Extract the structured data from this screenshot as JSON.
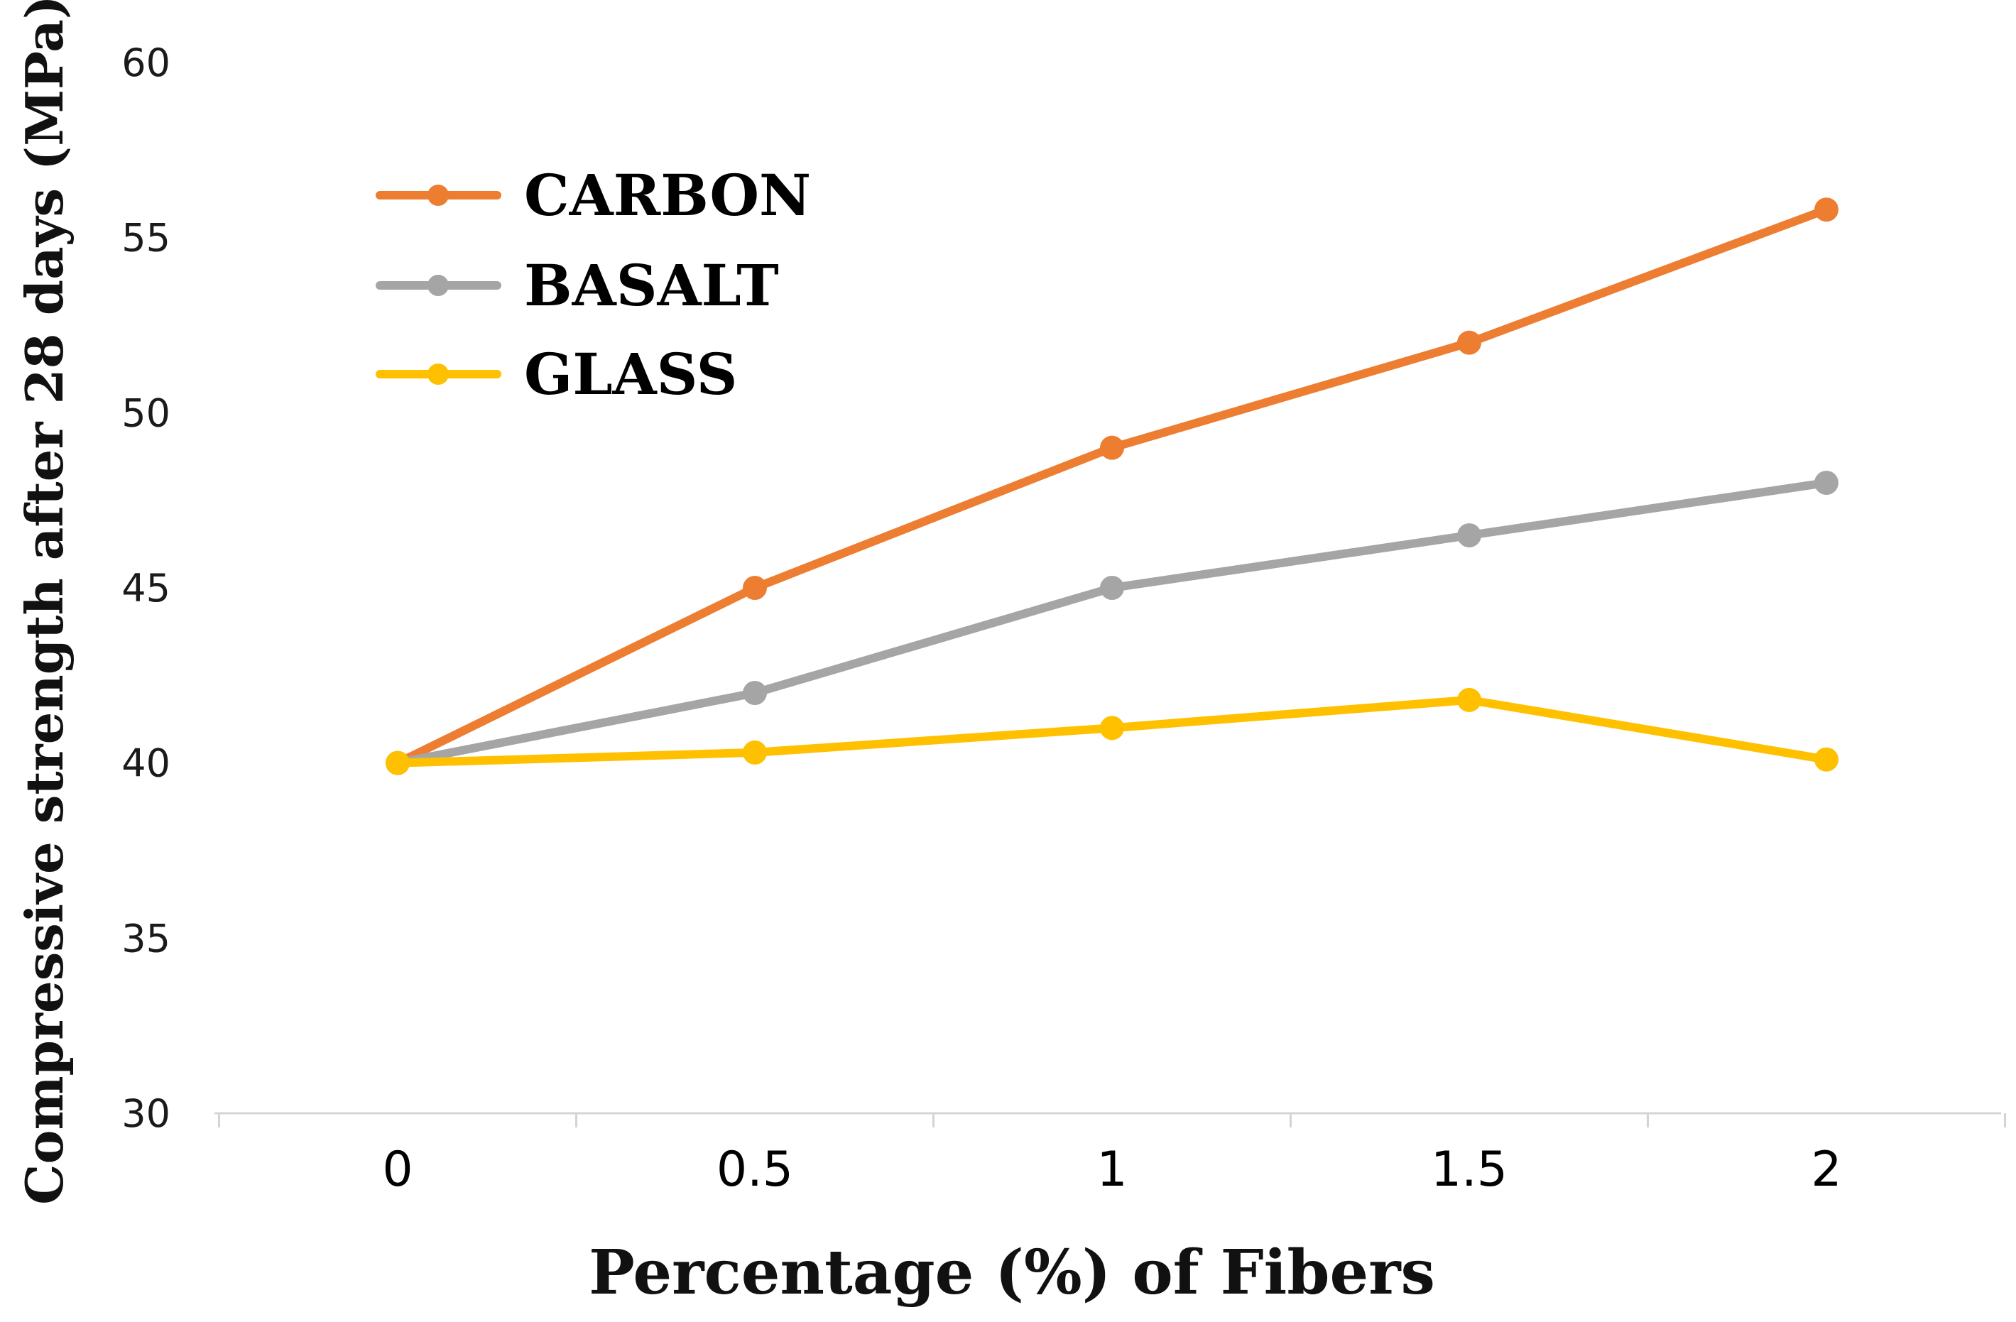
{
  "chart_data": {
    "type": "line",
    "title": "",
    "xlabel": "Percentage (%) of Fibers",
    "ylabel": "Compressive strength after 28 days (MPa)",
    "categories": [
      "0",
      "0.5",
      "1",
      "1.5",
      "2"
    ],
    "ylim": [
      30,
      60
    ],
    "yticks": [
      "30",
      "35",
      "40",
      "45",
      "50",
      "55",
      "60"
    ],
    "grid": false,
    "legend_position": "top-left",
    "series": [
      {
        "name": "CARBON",
        "color": "#ED7D31",
        "values": [
          40,
          45,
          49,
          52,
          55.8
        ]
      },
      {
        "name": "BASALT",
        "color": "#A5A5A5",
        "values": [
          40,
          42,
          45,
          46.5,
          48
        ]
      },
      {
        "name": "GLASS",
        "color": "#FFC000",
        "values": [
          40,
          40.3,
          41,
          41.8,
          40.1
        ]
      }
    ]
  }
}
